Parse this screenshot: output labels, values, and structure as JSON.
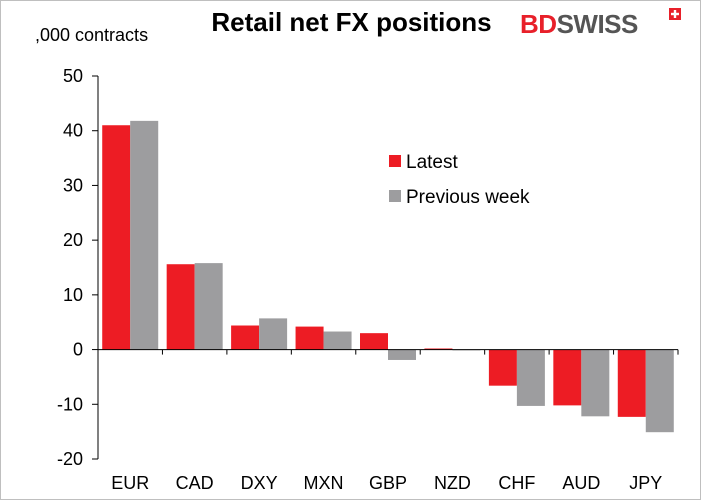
{
  "header": {
    "title": "Retail net FX positions",
    "units": ",000 contracts",
    "logo_bd": "BD",
    "logo_swiss": "SWISS"
  },
  "colors": {
    "latest": "#ed1c24",
    "previous": "#9d9d9f",
    "axis": "#000000",
    "logo_red": "#e8202a",
    "logo_gray": "#555555"
  },
  "chart_data": {
    "type": "bar",
    "title": "Retail net FX positions",
    "ylabel": ",000 contracts",
    "xlabel": "",
    "ylim": [
      -20,
      50
    ],
    "yticks": [
      -20,
      -10,
      0,
      10,
      20,
      30,
      40,
      50
    ],
    "grid": false,
    "legend_position": "top-right",
    "categories": [
      "EUR",
      "CAD",
      "DXY",
      "MXN",
      "GBP",
      "NZD",
      "CHF",
      "AUD",
      "JPY"
    ],
    "series": [
      {
        "name": "Latest",
        "values": [
          41.0,
          15.6,
          4.4,
          4.2,
          3.0,
          0.2,
          -6.6,
          -10.2,
          -12.3
        ]
      },
      {
        "name": "Previous week",
        "values": [
          41.8,
          15.8,
          5.7,
          3.3,
          -1.9,
          0.0,
          -10.3,
          -12.2,
          -15.1
        ]
      }
    ]
  }
}
